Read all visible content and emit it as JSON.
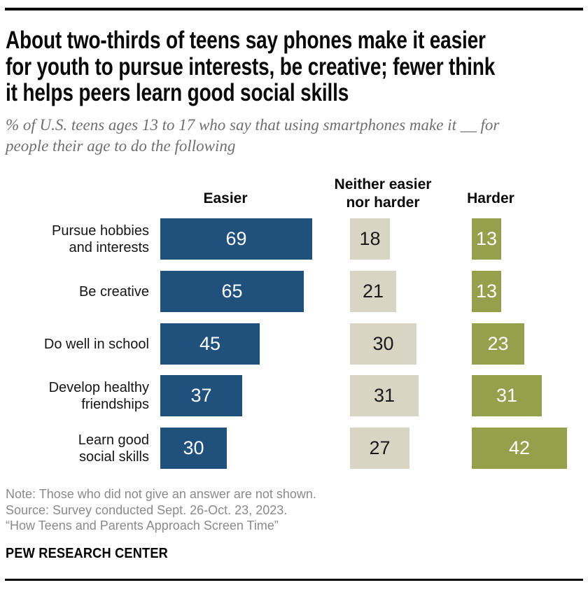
{
  "header": {
    "title": "About two-thirds of teens say phones make it easier for youth to pursue interests, be creative; fewer think it helps peers learn good social skills",
    "title_lines": [
      "About two-thirds of teens say phones make it easier",
      "for youth to pursue interests, be creative; fewer think",
      "it helps peers learn good social skills"
    ],
    "subtitle": "% of U.S. teens ages 13 to 17 who say that using smartphones make it __ for people their age to do the following",
    "subtitle_lines": [
      "% of U.S. teens ages 13 to 17 who say that using smartphones make it __ for",
      "people their age to do the following"
    ]
  },
  "chart_data": {
    "type": "bar",
    "orientation": "horizontal",
    "unit": "%",
    "xlim": [
      0,
      100
    ],
    "grid": false,
    "legend_position": "column-headers-above-bars",
    "categories": [
      "Pursue hobbies and interests",
      "Be creative",
      "Do well in school",
      "Develop healthy friendships",
      "Learn good social skills"
    ],
    "category_label_lines": [
      [
        "Pursue hobbies",
        "and interests"
      ],
      [
        "Be creative"
      ],
      [
        "Do well in school"
      ],
      [
        "Develop healthy",
        "friendships"
      ],
      [
        "Learn good",
        "social skills"
      ]
    ],
    "series": [
      {
        "name": "Easier",
        "name_lines": [
          "Easier"
        ],
        "color": "#20507C",
        "value_text_color": "#FFFFFF",
        "values": [
          69,
          65,
          45,
          37,
          30
        ]
      },
      {
        "name": "Neither easier nor harder",
        "name_lines": [
          "Neither easier",
          "nor harder"
        ],
        "color": "#D9D5C5",
        "value_text_color": "#1A1A1A",
        "values": [
          18,
          21,
          30,
          31,
          27
        ]
      },
      {
        "name": "Harder",
        "name_lines": [
          "Harder"
        ],
        "color": "#95A04C",
        "value_text_color": "#FFFFFF",
        "values": [
          13,
          13,
          23,
          31,
          42
        ]
      }
    ]
  },
  "footer": {
    "notes": [
      "Note: Those who did not give an answer are not shown.",
      "Source: Survey conducted Sept. 26-Oct. 23, 2023.",
      "“How Teens and Parents Approach Screen Time”"
    ],
    "wordmark": "PEW RESEARCH CENTER"
  }
}
